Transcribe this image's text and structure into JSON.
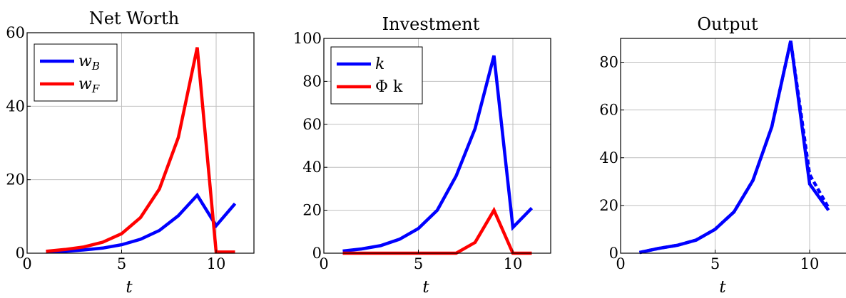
{
  "chart_data": [
    {
      "type": "line",
      "title": "Net Worth",
      "xlabel": "t",
      "ylabel": "",
      "xlim": [
        0,
        12
      ],
      "ylim": [
        0,
        60
      ],
      "xticks": [
        "0",
        "5",
        "10"
      ],
      "xtick_values": [
        0,
        5,
        10
      ],
      "yticks": [
        "0",
        "20",
        "40",
        "60"
      ],
      "ytick_values": [
        0,
        20,
        40,
        60
      ],
      "grid": true,
      "legend": "top-left",
      "x": [
        1,
        2,
        3,
        4,
        5,
        6,
        7,
        8,
        9,
        10,
        11
      ],
      "series": [
        {
          "name": "w",
          "sub": "B",
          "color": "#0000ff",
          "dash": "solid",
          "values": [
            0.3,
            0.5,
            0.9,
            1.4,
            2.3,
            3.8,
            6.2,
            10.2,
            15.8,
            7.5,
            13.5
          ]
        },
        {
          "name": "w",
          "sub": "F",
          "color": "#ff0000",
          "dash": "solid",
          "values": [
            0.5,
            1.0,
            1.7,
            3.0,
            5.3,
            9.7,
            17.5,
            31.5,
            56.0,
            0.3,
            0.3
          ]
        }
      ]
    },
    {
      "type": "line",
      "title": "Investment",
      "xlabel": "t",
      "ylabel": "",
      "xlim": [
        0,
        12
      ],
      "ylim": [
        0,
        100
      ],
      "xticks": [
        "0",
        "5",
        "10"
      ],
      "xtick_values": [
        0,
        5,
        10
      ],
      "yticks": [
        "0",
        "20",
        "40",
        "60",
        "80",
        "100"
      ],
      "ytick_values": [
        0,
        20,
        40,
        60,
        80,
        100
      ],
      "grid": true,
      "legend": "top-left",
      "x": [
        1,
        2,
        3,
        4,
        5,
        6,
        7,
        8,
        9,
        10,
        11
      ],
      "series": [
        {
          "name": "k",
          "sub": "",
          "italic": true,
          "color": "#0000ff",
          "dash": "solid",
          "values": [
            1.0,
            2.0,
            3.5,
            6.5,
            11.5,
            20.0,
            36.0,
            58.0,
            92.0,
            12.0,
            21.0
          ]
        },
        {
          "name": "Φ k",
          "sub": "",
          "italic": false,
          "color": "#ff0000",
          "dash": "solid",
          "values": [
            0,
            0,
            0,
            0,
            0,
            0,
            0,
            5.0,
            20.0,
            0,
            0
          ]
        }
      ]
    },
    {
      "type": "line",
      "title": "Output",
      "xlabel": "t",
      "ylabel": "",
      "xlim": [
        0,
        12
      ],
      "ylim": [
        0,
        90
      ],
      "xticks": [
        "0",
        "5",
        "10"
      ],
      "xtick_values": [
        0,
        5,
        10
      ],
      "yticks": [
        "0",
        "20",
        "40",
        "60",
        "80"
      ],
      "ytick_values": [
        0,
        20,
        40,
        60,
        80
      ],
      "grid": true,
      "legend": "none",
      "x": [
        1,
        2,
        3,
        4,
        5,
        6,
        7,
        8,
        9,
        10,
        11
      ],
      "series": [
        {
          "color": "#0000ff",
          "dash": "solid",
          "values": [
            0.3,
            2.0,
            3.3,
            5.5,
            10.0,
            17.3,
            30.5,
            53.0,
            89.0,
            29.0,
            18.0
          ]
        },
        {
          "color": "#0000ff",
          "dash": "dashed",
          "values": [
            0.3,
            2.0,
            3.3,
            5.5,
            10.0,
            17.3,
            30.5,
            53.0,
            89.0,
            33.0,
            19.0
          ]
        }
      ]
    }
  ]
}
